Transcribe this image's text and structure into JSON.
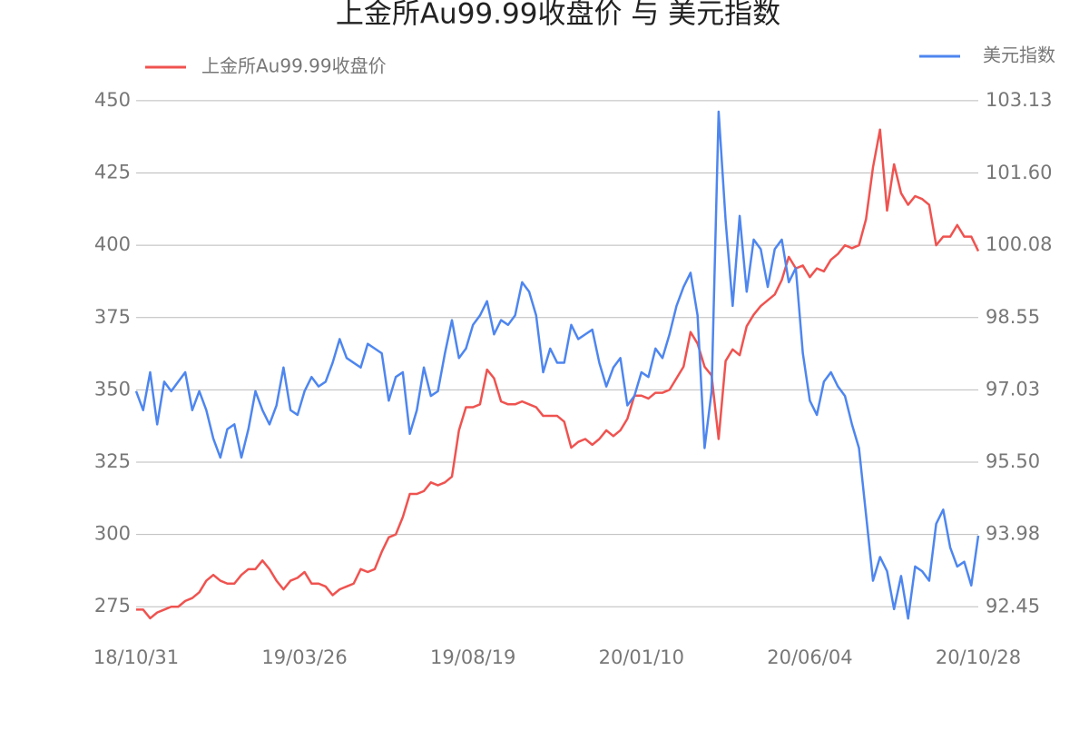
{
  "chart_data": {
    "type": "line",
    "title": "上金所Au99.99收盘价 与 美元指数",
    "categories": [
      "18/10/31",
      null,
      null,
      null,
      null,
      null,
      null,
      null,
      null,
      null,
      null,
      null,
      null,
      null,
      null,
      null,
      null,
      null,
      null,
      null,
      null,
      null,
      null,
      null,
      "19/03/26",
      null,
      null,
      null,
      null,
      null,
      null,
      null,
      null,
      null,
      null,
      null,
      null,
      null,
      null,
      null,
      null,
      null,
      null,
      null,
      null,
      null,
      null,
      null,
      "19/08/19",
      null,
      null,
      null,
      null,
      null,
      null,
      null,
      null,
      null,
      null,
      null,
      null,
      null,
      null,
      null,
      null,
      null,
      null,
      null,
      null,
      null,
      null,
      null,
      "20/01/10",
      null,
      null,
      null,
      null,
      null,
      null,
      null,
      null,
      null,
      null,
      null,
      null,
      null,
      null,
      null,
      null,
      null,
      null,
      null,
      null,
      null,
      null,
      null,
      "20/06/04",
      null,
      null,
      null,
      null,
      null,
      null,
      null,
      null,
      null,
      null,
      null,
      null,
      null,
      null,
      null,
      null,
      null,
      null,
      null,
      null,
      null,
      null,
      null,
      "20/10/28"
    ],
    "series": [
      {
        "name": "上金所Au99.99收盘价",
        "color": "#ef5350",
        "axis": "y",
        "values": [
          274,
          274,
          271,
          273,
          274,
          275,
          275,
          277,
          278,
          280,
          284,
          286,
          284,
          283,
          283,
          286,
          288,
          288,
          291,
          288,
          284,
          281,
          284,
          285,
          287,
          283,
          283,
          282,
          279,
          281,
          282,
          283,
          288,
          287,
          288,
          294,
          299,
          300,
          306,
          314,
          314,
          315,
          318,
          317,
          318,
          320,
          336,
          344,
          344,
          345,
          357,
          354,
          346,
          345,
          345,
          346,
          345,
          344,
          341,
          341,
          341,
          339,
          330,
          332,
          333,
          331,
          333,
          336,
          334,
          336,
          340,
          348,
          348,
          347,
          349,
          349,
          350,
          354,
          358,
          370,
          366,
          358,
          355,
          333,
          360,
          364,
          362,
          372,
          376,
          379,
          381,
          383,
          388,
          396,
          392,
          393,
          389,
          392,
          391,
          395,
          397,
          400,
          399,
          400,
          409,
          427,
          440,
          412,
          428,
          418,
          414,
          417,
          416,
          414,
          400,
          403,
          403,
          407,
          403,
          403,
          398
        ]
      },
      {
        "name": "美元指数",
        "color": "#4e86ef",
        "axis": "y2",
        "values": [
          97.0,
          96.6,
          97.4,
          96.3,
          97.2,
          97.0,
          97.2,
          97.4,
          96.6,
          97.0,
          96.6,
          96.0,
          95.6,
          96.2,
          96.3,
          95.6,
          96.2,
          97.0,
          96.6,
          96.3,
          96.7,
          97.5,
          96.6,
          96.5,
          97.0,
          97.3,
          97.1,
          97.2,
          97.6,
          98.1,
          97.7,
          97.6,
          97.5,
          98.0,
          97.9,
          97.8,
          96.8,
          97.3,
          97.4,
          96.1,
          96.6,
          97.5,
          96.9,
          97.0,
          97.8,
          98.5,
          97.7,
          97.9,
          98.4,
          98.6,
          98.9,
          98.2,
          98.5,
          98.4,
          98.6,
          99.3,
          99.1,
          98.6,
          97.4,
          97.9,
          97.6,
          97.6,
          98.4,
          98.1,
          98.2,
          98.3,
          97.6,
          97.1,
          97.5,
          97.7,
          96.7,
          96.9,
          97.4,
          97.3,
          97.9,
          97.7,
          98.2,
          98.8,
          99.2,
          99.5,
          98.6,
          95.8,
          97.0,
          102.9,
          100.6,
          98.8,
          100.7,
          99.1,
          100.2,
          100.0,
          99.2,
          100.0,
          100.2,
          99.3,
          99.6,
          97.8,
          96.8,
          96.5,
          97.2,
          97.4,
          97.1,
          96.9,
          96.3,
          95.8,
          94.4,
          93.0,
          93.5,
          93.2,
          92.4,
          93.1,
          92.2,
          93.3,
          93.2,
          93.0,
          94.2,
          94.5,
          93.7,
          93.3,
          93.4,
          92.9,
          93.95
        ]
      }
    ],
    "ylim": [
      260,
      455
    ],
    "yticks": [
      275,
      300,
      325,
      350,
      375,
      400,
      425,
      450
    ],
    "y2lim": [
      91.535,
      103.437
    ],
    "y2ticks": [
      92.45,
      93.98,
      {
        "value": 95.5,
        "label": "95.50"
      },
      97.03,
      98.55,
      100.08,
      {
        "value": 101.6,
        "label": "101.60"
      },
      103.13
    ],
    "grid": true
  }
}
